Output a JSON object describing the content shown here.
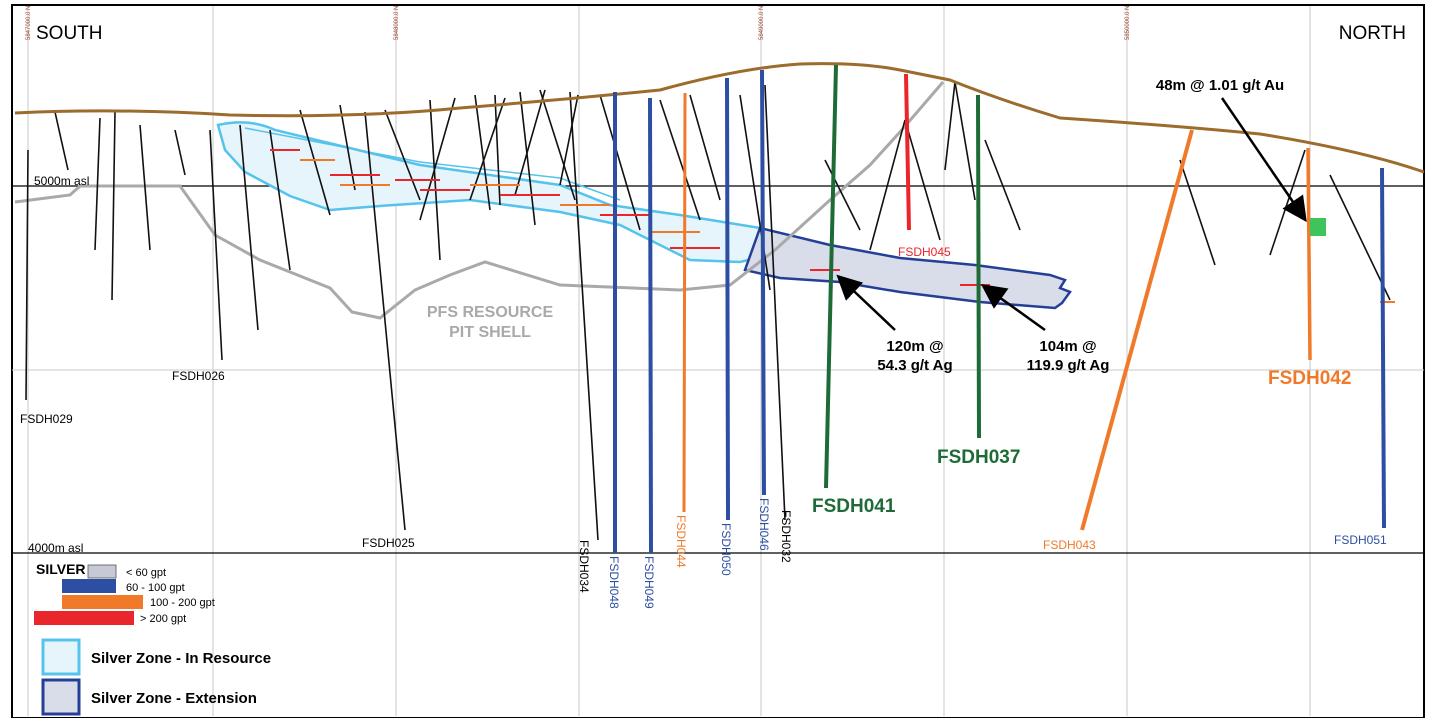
{
  "header": {
    "left": "SOUTH",
    "right": "NORTH"
  },
  "grid_labels": [
    "5847000.0 N",
    "5848000.0 N",
    "5849000.0 N",
    "5850000.0 N"
  ],
  "elevation_labels": {
    "upper": "5000m asl",
    "lower": "4000m asl"
  },
  "pit_shell_label": {
    "line1": "PFS RESOURCE",
    "line2": "PIT SHELL"
  },
  "intercepts": [
    {
      "line1": "120m @",
      "line2": "54.3 g/t Ag"
    },
    {
      "line1": "104m @",
      "line2": "119.9 g/t Ag"
    },
    {
      "line1": "48m @ 1.01 g/t Au"
    }
  ],
  "holes": {
    "fsdh029": "FSDH029",
    "fsdh026": "FSDH026",
    "fsdh025": "FSDH025",
    "fsdh034": "FSDH034",
    "fsdh048": "FSDH048",
    "fsdh049": "FSDH049",
    "fsdh044": "FSDH044",
    "fsdh050": "FSDH050",
    "fsdh046": "FSDH046",
    "fsdh032": "FSDH032",
    "fsdh041": "FSDH041",
    "fsdh045": "FSDH045",
    "fsdh037": "FSDH037",
    "fsdh043": "FSDH043",
    "fsdh042": "FSDH042",
    "fsdh051": "FSDH051"
  },
  "legend": {
    "title": "SILVER",
    "grades": [
      "< 60 gpt",
      "60 - 100 gpt",
      "100 - 200 gpt",
      "> 200 gpt"
    ],
    "zone_resource": "Silver Zone - In Resource",
    "zone_extension": "Silver Zone - Extension"
  },
  "colors": {
    "topography": "#9c6b2e",
    "pit_shell": "#a9a9a9",
    "zone_resource_fill": "#e6f4fb",
    "zone_resource_stroke": "#55c3ec",
    "zone_extension_fill": "#d9dde9",
    "zone_extension_stroke": "#243f95",
    "blue_hole": "#2c4ea3",
    "orange_hole": "#f07a2a",
    "green_hole": "#1e6b37",
    "red_hole": "#e8262b",
    "au_marker": "#3ec45a"
  },
  "icons": {
    "au_intercept": "green-square-icon",
    "arrow": "arrow-icon"
  }
}
